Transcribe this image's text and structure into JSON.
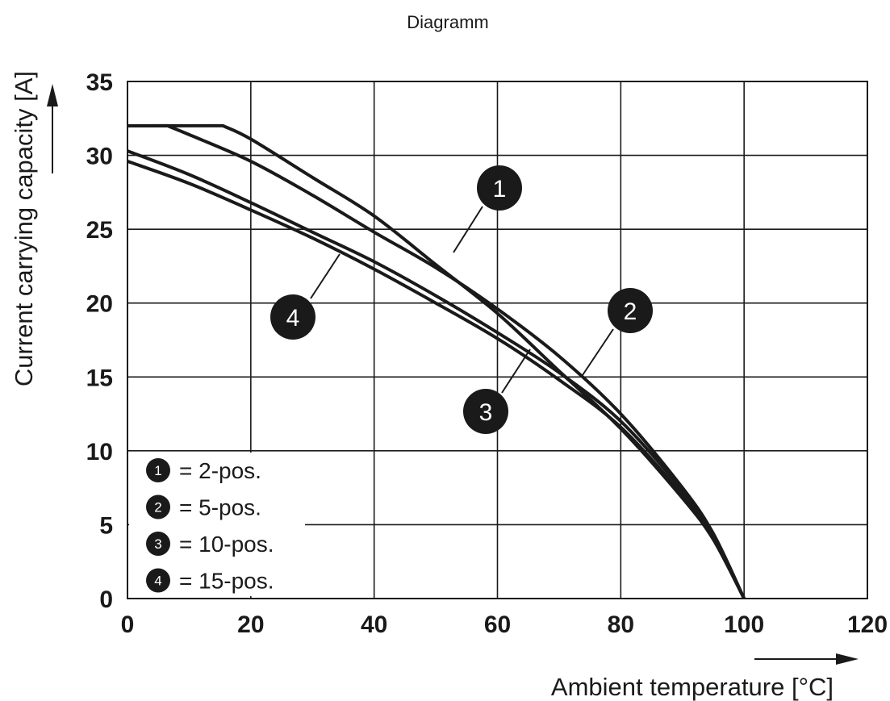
{
  "chart_data": {
    "type": "line",
    "title": "Diagramm",
    "xlabel": "Ambient temperature [°C]",
    "ylabel": "Current carrying capacity [A]",
    "xlim": [
      0,
      120
    ],
    "ylim": [
      0,
      35
    ],
    "xticks": [
      0,
      20,
      40,
      60,
      80,
      100,
      120
    ],
    "yticks": [
      0,
      5,
      10,
      15,
      20,
      25,
      30,
      35
    ],
    "xtick_labels": [
      "0",
      "20",
      "40",
      "60",
      "80",
      "100",
      "120"
    ],
    "ytick_labels": [
      "0",
      "5",
      "10",
      "15",
      "20",
      "25",
      "30",
      "35"
    ],
    "grid": true,
    "legend_position": "bottom-left",
    "series": [
      {
        "marker": "1",
        "legend_label": "= 2-pos.",
        "x": [
          0,
          15.5,
          20,
          30,
          40,
          50,
          60,
          70,
          80,
          90,
          95,
          100
        ],
        "y": [
          32,
          32,
          31.1,
          28.5,
          25.9,
          22.6,
          19.3,
          15.4,
          11.5,
          6.8,
          4,
          0
        ]
      },
      {
        "marker": "2",
        "legend_label": "= 5-pos.",
        "x": [
          0,
          6.5,
          10,
          20,
          30,
          40,
          50,
          60,
          70,
          80,
          90,
          95,
          100
        ],
        "y": [
          32,
          32,
          31.4,
          29.6,
          27.3,
          24.8,
          22.4,
          19.6,
          16.4,
          12.5,
          7.5,
          4.4,
          0
        ]
      },
      {
        "marker": "3",
        "legend_label": "= 10-pos.",
        "x": [
          0,
          10,
          20,
          30,
          40,
          50,
          60,
          70,
          80,
          90,
          95,
          100
        ],
        "y": [
          30.3,
          28.7,
          26.8,
          24.8,
          22.8,
          20.5,
          18,
          15.3,
          12,
          7.3,
          4.3,
          0
        ]
      },
      {
        "marker": "4",
        "legend_label": "= 15-pos.",
        "x": [
          0,
          10,
          20,
          30,
          40,
          50,
          60,
          70,
          80,
          90,
          95,
          100
        ],
        "y": [
          29.6,
          28.1,
          26.3,
          24.4,
          22.3,
          20,
          17.6,
          14.8,
          11.6,
          7,
          4.1,
          0
        ]
      }
    ],
    "line_color": "#1a1a1a",
    "grid_color": "#1a1a1a",
    "callout_fill": "#1a1a1a",
    "callout_text_color": "#ffffff"
  }
}
